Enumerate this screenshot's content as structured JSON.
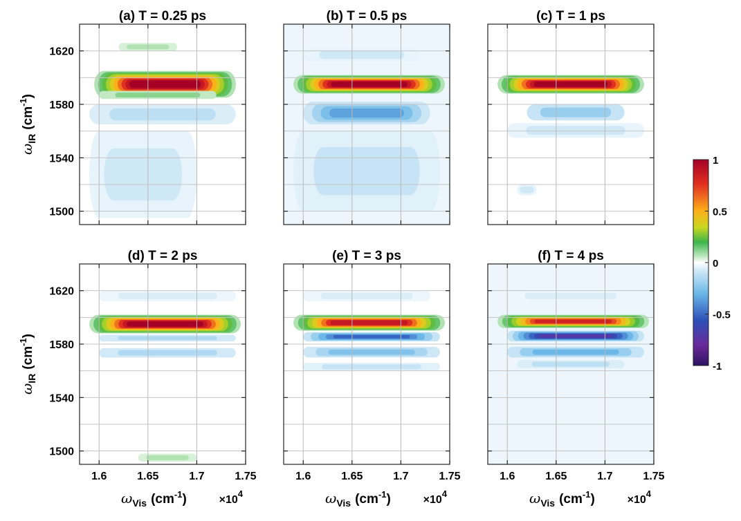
{
  "chart_data": {
    "type": "heatmap",
    "panels": [
      {
        "title": "(a) T = 0.25 ps",
        "features": [
          {
            "x": [
              1.595,
              1.74
            ],
            "y": [
              1585,
              1605
            ],
            "peak": 1.0,
            "sign": "positive",
            "label": "main band"
          },
          {
            "x": [
              1.6,
              1.72
            ],
            "y": [
              1584,
              1590
            ],
            "peak": 0.15,
            "sign": "positive"
          },
          {
            "x": [
              1.62,
              1.68
            ],
            "y": [
              1620,
              1626
            ],
            "peak": 0.1,
            "sign": "positive"
          },
          {
            "x": [
              1.59,
              1.74
            ],
            "y": [
              1565,
              1580
            ],
            "peak": -0.12,
            "sign": "negative"
          },
          {
            "x": [
              1.59,
              1.7
            ],
            "y": [
              1495,
              1560
            ],
            "peak": -0.08,
            "sign": "negative"
          }
        ]
      },
      {
        "title": "(b) T = 0.5 ps",
        "background": -0.03,
        "features": [
          {
            "x": [
              1.59,
              1.745
            ],
            "y": [
              1588,
              1602
            ],
            "peak": 1.0,
            "sign": "positive",
            "label": "main band"
          },
          {
            "x": [
              1.6,
              1.73
            ],
            "y": [
              1565,
              1582
            ],
            "peak": -0.35,
            "sign": "negative"
          },
          {
            "x": [
              1.59,
              1.74
            ],
            "y": [
              1500,
              1560
            ],
            "peak": -0.1,
            "sign": "negative"
          },
          {
            "x": [
              1.6,
              1.72
            ],
            "y": [
              1612,
              1622
            ],
            "peak": -0.08,
            "sign": "negative"
          }
        ]
      },
      {
        "title": "(c) T = 1 ps",
        "features": [
          {
            "x": [
              1.59,
              1.74
            ],
            "y": [
              1588,
              1602
            ],
            "peak": 1.0,
            "sign": "positive",
            "label": "main band"
          },
          {
            "x": [
              1.62,
              1.72
            ],
            "y": [
              1568,
              1580
            ],
            "peak": -0.2,
            "sign": "negative"
          },
          {
            "x": [
              1.6,
              1.74
            ],
            "y": [
              1555,
              1566
            ],
            "peak": -0.08,
            "sign": "negative"
          },
          {
            "x": [
              1.61,
              1.63
            ],
            "y": [
              1512,
              1520
            ],
            "peak": -0.08,
            "sign": "negative"
          }
        ]
      },
      {
        "title": "(d) T = 2 ps",
        "features": [
          {
            "x": [
              1.59,
              1.745
            ],
            "y": [
              1588,
              1602
            ],
            "peak": 1.0,
            "sign": "positive",
            "label": "main band"
          },
          {
            "x": [
              1.6,
              1.74
            ],
            "y": [
              1582,
              1587
            ],
            "peak": -0.15,
            "sign": "negative"
          },
          {
            "x": [
              1.6,
              1.74
            ],
            "y": [
              1570,
              1577
            ],
            "peak": -0.15,
            "sign": "negative"
          },
          {
            "x": [
              1.6,
              1.74
            ],
            "y": [
              1612,
              1620
            ],
            "peak": -0.06,
            "sign": "negative"
          },
          {
            "x": [
              1.64,
              1.7
            ],
            "y": [
              1492,
              1498
            ],
            "peak": 0.1,
            "sign": "positive"
          }
        ]
      },
      {
        "title": "(e) T = 3 ps",
        "features": [
          {
            "x": [
              1.59,
              1.745
            ],
            "y": [
              1590,
              1602
            ],
            "peak": 0.9,
            "sign": "positive",
            "label": "main band"
          },
          {
            "x": [
              1.6,
              1.74
            ],
            "y": [
              1582,
              1589
            ],
            "peak": -0.5,
            "sign": "negative"
          },
          {
            "x": [
              1.6,
              1.74
            ],
            "y": [
              1570,
              1578
            ],
            "peak": -0.25,
            "sign": "negative"
          },
          {
            "x": [
              1.6,
              1.74
            ],
            "y": [
              1560,
              1566
            ],
            "peak": -0.1,
            "sign": "negative"
          },
          {
            "x": [
              1.6,
              1.73
            ],
            "y": [
              1612,
              1620
            ],
            "peak": -0.06,
            "sign": "negative"
          }
        ]
      },
      {
        "title": "(f) T = 4 ps",
        "background": -0.03,
        "features": [
          {
            "x": [
              1.59,
              1.745
            ],
            "y": [
              1592,
              1602
            ],
            "peak": 0.85,
            "sign": "positive",
            "label": "main band"
          },
          {
            "x": [
              1.6,
              1.74
            ],
            "y": [
              1582,
              1590
            ],
            "peak": -0.7,
            "sign": "negative"
          },
          {
            "x": [
              1.6,
              1.74
            ],
            "y": [
              1570,
              1578
            ],
            "peak": -0.3,
            "sign": "negative"
          },
          {
            "x": [
              1.61,
              1.72
            ],
            "y": [
              1562,
              1568
            ],
            "peak": -0.12,
            "sign": "negative"
          },
          {
            "x": [
              1.6,
              1.73
            ],
            "y": [
              1612,
              1620
            ],
            "peak": -0.06,
            "sign": "negative"
          }
        ]
      }
    ],
    "xlim": [
      1.58,
      1.75
    ],
    "ylim": [
      1490,
      1640
    ],
    "xticks": [
      1.6,
      1.65,
      1.7,
      1.75
    ],
    "xtick_labels": [
      "1.6",
      "1.65",
      "1.7",
      "1.75"
    ],
    "yticks": [
      1500,
      1540,
      1580,
      1620
    ],
    "ytick_labels": [
      "1500",
      "1540",
      "1580",
      "1620"
    ],
    "xlabel_symbol": "ω",
    "xlabel_sub": "Vis",
    "xlabel_unit": "(cm",
    "xlabel_exp": "-1",
    "xlabel_close": ")",
    "x_multiplier": "×10",
    "x_multiplier_exp": "4",
    "ylabel_symbol": "ω",
    "ylabel_sub": "IR",
    "ylabel_unit": "(cm",
    "ylabel_exp": "-1",
    "ylabel_close": ")",
    "colorbar": {
      "range": [
        -1,
        1
      ],
      "ticks": [
        1,
        0.5,
        0,
        -0.5,
        -1
      ],
      "tick_labels": [
        "1",
        "0.5",
        "0",
        "-0.5",
        "-1"
      ],
      "colormap": "jet-like with white at zero"
    },
    "grid": true
  }
}
